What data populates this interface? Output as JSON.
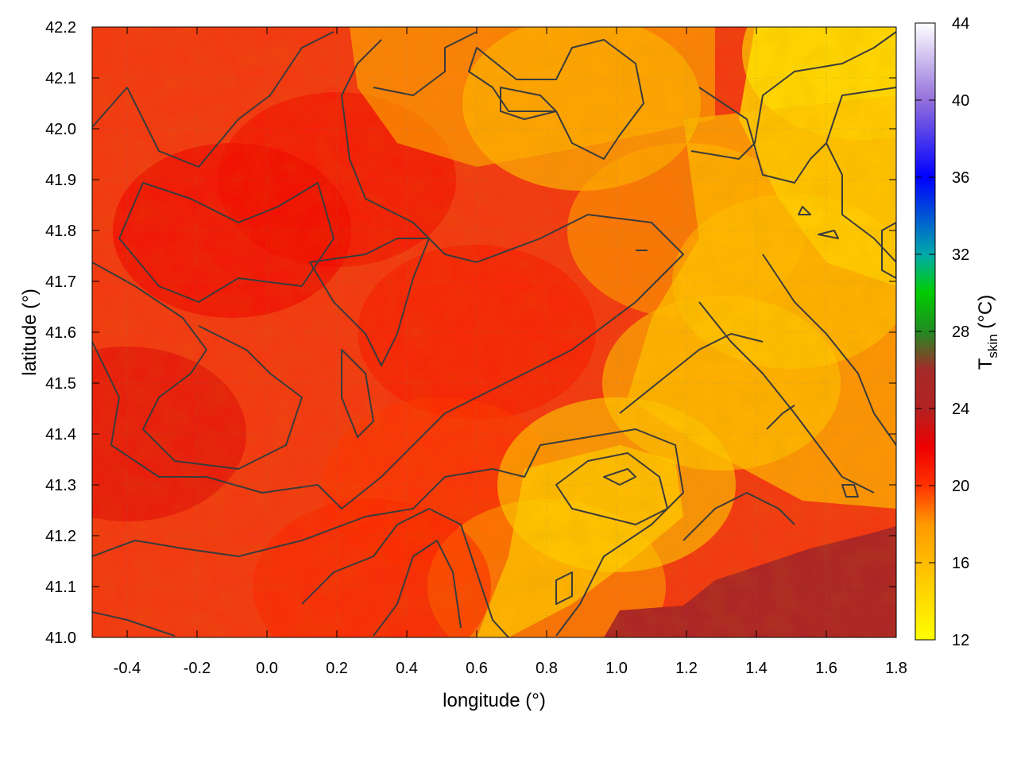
{
  "chart_data": {
    "type": "heatmap",
    "xlabel": "longitude (°)",
    "ylabel": "latitude (°)",
    "colorbar_label_main": "T",
    "colorbar_label_sub": "skin",
    "colorbar_label_unit": " (°C)",
    "xlim": [
      -0.5,
      1.8
    ],
    "ylim": [
      41.0,
      42.2
    ],
    "xticks": [
      -0.4,
      -0.2,
      0.0,
      0.2,
      0.4,
      0.6,
      0.8,
      1.0,
      1.2,
      1.4,
      1.6,
      1.8
    ],
    "xtick_labels": [
      "-0.4",
      "-0.2",
      "0.0",
      "0.2",
      "0.4",
      "0.6",
      "0.8",
      "1.0",
      "1.2",
      "1.4",
      "1.6",
      "1.8"
    ],
    "yticks": [
      41.0,
      41.1,
      41.2,
      41.3,
      41.4,
      41.5,
      41.6,
      41.7,
      41.8,
      41.9,
      42.0,
      42.1,
      42.2
    ],
    "ytick_labels": [
      "41.0",
      "41.1",
      "41.2",
      "41.3",
      "41.4",
      "41.5",
      "41.6",
      "41.7",
      "41.8",
      "41.9",
      "42.0",
      "42.1",
      "42.2"
    ],
    "colorbar_range": [
      12,
      44
    ],
    "colorbar_ticks": [
      12,
      16,
      20,
      24,
      28,
      32,
      36,
      40,
      44
    ],
    "colorbar_tick_labels": [
      "12",
      "16",
      "20",
      "24",
      "28",
      "32",
      "36",
      "40",
      "44"
    ],
    "colorscale": [
      {
        "value": 12,
        "color": "#ffff00"
      },
      {
        "value": 18,
        "color": "#ff9900"
      },
      {
        "value": 20,
        "color": "#ff3300"
      },
      {
        "value": 22,
        "color": "#ee0000"
      },
      {
        "value": 24,
        "color": "#b22222"
      },
      {
        "value": 26,
        "color": "#a52a2a"
      },
      {
        "value": 28,
        "color": "#228b22"
      },
      {
        "value": 30,
        "color": "#00cc00"
      },
      {
        "value": 32,
        "color": "#00aaaa"
      },
      {
        "value": 36,
        "color": "#0000ff"
      },
      {
        "value": 40,
        "color": "#9370db"
      },
      {
        "value": 44,
        "color": "#ffffff"
      }
    ],
    "grid": true,
    "sea_temperature": 25,
    "temperature_field_samples": [
      {
        "lon": -0.4,
        "lat": 41.4,
        "tskin": 22.5
      },
      {
        "lon": -0.1,
        "lat": 41.8,
        "tskin": 22.0
      },
      {
        "lon": 0.2,
        "lat": 41.9,
        "tskin": 21.5
      },
      {
        "lon": 0.6,
        "lat": 41.6,
        "tskin": 21.0
      },
      {
        "lon": 0.5,
        "lat": 41.3,
        "tskin": 20.0
      },
      {
        "lon": 0.8,
        "lat": 41.1,
        "tskin": 17.5
      },
      {
        "lon": 1.0,
        "lat": 41.3,
        "tskin": 14.0
      },
      {
        "lon": 1.3,
        "lat": 41.5,
        "tskin": 15.0
      },
      {
        "lon": 1.5,
        "lat": 41.7,
        "tskin": 15.0
      },
      {
        "lon": 1.7,
        "lat": 42.15,
        "tskin": 12.5
      },
      {
        "lon": 0.9,
        "lat": 42.05,
        "tskin": 14.5
      },
      {
        "lon": 1.2,
        "lat": 41.8,
        "tskin": 17.0
      },
      {
        "lon": 0.3,
        "lat": 41.1,
        "tskin": 20.5
      },
      {
        "lon": 1.5,
        "lat": 41.1,
        "tskin": 25.0
      }
    ],
    "contour_levels_celsius": [
      16,
      18,
      20
    ]
  }
}
